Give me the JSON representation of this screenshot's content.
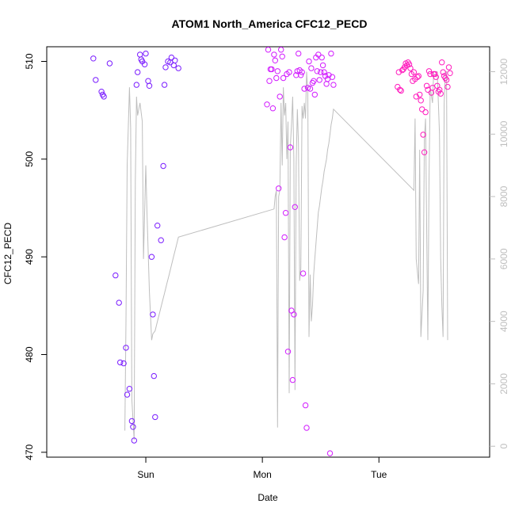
{
  "chart_data": {
    "type": "scatter",
    "title": "ATOM1 North_America CFC12_PECD",
    "xlabel": "Date",
    "ylabel": "CFC12_PECD",
    "x_ticks": [
      "Sun",
      "Mon",
      "Tue"
    ],
    "y_ticks": [
      470,
      480,
      490,
      500,
      510
    ],
    "y_ticks_right": [
      0,
      2000,
      4000,
      6000,
      8000,
      10000,
      12000
    ],
    "ylim": [
      469.5,
      511.5
    ],
    "ylim_right": [
      0,
      12000
    ],
    "colors": {
      "day1": "#7a1cff",
      "day2": "#d21cff",
      "day3": "#ff1cbe",
      "line": "#bebebe",
      "axis": "#000000"
    },
    "series": [
      {
        "values_comment_none": "",
        "x": [
          0.05,
          0.07,
          0.12,
          0.13,
          0.14,
          0.19,
          0.24,
          0.27,
          0.28,
          0.31,
          0.33,
          0.34,
          0.36,
          0.38,
          0.39,
          0.4,
          0.42,
          0.43,
          0.45,
          0.46,
          0.47,
          0.49,
          0.5,
          0.52,
          0.53,
          0.55,
          0.56,
          0.57,
          0.58,
          0.6,
          0.63,
          0.65,
          0.66,
          0.67,
          0.69,
          0.71,
          0.72,
          0.74,
          0.75,
          0.78
        ],
        "y": [
          510.3,
          508.1,
          506.9,
          506.6,
          506.4,
          509.8,
          488.1,
          485.3,
          479.2,
          479.1,
          480.7,
          475.9,
          476.5,
          473.2,
          472.6,
          471.2,
          507.6,
          508.9,
          510.7,
          510.2,
          510.0,
          509.7,
          510.8,
          508.0,
          507.5,
          490.0,
          484.1,
          477.8,
          473.6,
          493.2,
          491.7,
          499.3,
          507.6,
          509.4,
          510.0,
          509.9,
          510.4,
          509.6,
          510.1,
          509.3
        ]
      },
      {
        "x": [
          1.54,
          1.55,
          1.56,
          1.57,
          1.58,
          1.59,
          1.6,
          1.61,
          1.62,
          1.63,
          1.64,
          1.65,
          1.66,
          1.67,
          1.68,
          1.69,
          1.7,
          1.71,
          1.72,
          1.73,
          1.74,
          1.75,
          1.76,
          1.77,
          1.78,
          1.79,
          1.8,
          1.81,
          1.82,
          1.83,
          1.84,
          1.85,
          1.86,
          1.87,
          1.88,
          1.89,
          1.9,
          1.91,
          1.92,
          1.93,
          1.94,
          1.95,
          1.96,
          1.97,
          1.98,
          1.99,
          2.0,
          2.01,
          2.02,
          2.03,
          2.04,
          2.05,
          2.06,
          2.07,
          2.08,
          2.09,
          2.1,
          2.11
        ],
        "y": [
          505.6,
          511.2,
          508.0,
          509.2,
          509.2,
          505.2,
          510.7,
          510.1,
          508.3,
          509.0,
          497.0,
          506.4,
          511.2,
          510.5,
          508.3,
          492.0,
          494.5,
          508.7,
          480.3,
          508.9,
          501.2,
          484.5,
          477.4,
          484.1,
          495.1,
          508.6,
          509.0,
          510.8,
          509.1,
          508.6,
          508.9,
          488.3,
          507.2,
          474.8,
          472.5,
          507.3,
          510.0,
          507.2,
          509.3,
          507.8,
          508.0,
          506.6,
          510.4,
          509.0,
          510.7,
          508.1,
          508.9,
          510.4,
          509.6,
          508.9,
          508.5,
          507.7,
          508.2,
          508.6,
          469.9,
          510.8,
          508.4,
          507.6
        ]
      },
      {
        "x": [
          2.66,
          2.67,
          2.68,
          2.69,
          2.7,
          2.71,
          2.72,
          2.73,
          2.74,
          2.75,
          2.76,
          2.77,
          2.78,
          2.79,
          2.8,
          2.81,
          2.82,
          2.83,
          2.84,
          2.85,
          2.86,
          2.87,
          2.88,
          2.89,
          2.9,
          2.91,
          2.92,
          2.93,
          2.94,
          2.95,
          2.96,
          2.97,
          2.98,
          2.99,
          3.0,
          3.01,
          3.02,
          3.03,
          3.04,
          3.05,
          3.06,
          3.07,
          3.08,
          3.09,
          3.1,
          3.11
        ],
        "y": [
          507.4,
          508.9,
          507.1,
          507.0,
          509.1,
          509.2,
          509.4,
          509.8,
          509.6,
          509.9,
          509.7,
          509.3,
          508.7,
          508.0,
          508.9,
          508.2,
          506.4,
          508.4,
          508.5,
          506.6,
          506.0,
          505.1,
          502.5,
          500.7,
          504.8,
          507.5,
          507.1,
          509.0,
          508.7,
          506.8,
          507.3,
          508.7,
          508.7,
          508.4,
          507.5,
          506.9,
          507.1,
          506.7,
          509.9,
          508.9,
          508.5,
          508.3,
          508.1,
          507.4,
          509.4,
          508.8
        ]
      }
    ],
    "line_series": {
      "x": [
        0.32,
        0.33,
        0.34,
        0.36,
        0.37,
        0.38,
        0.4,
        0.41,
        0.42,
        0.43,
        0.45,
        0.47,
        0.48,
        0.5,
        0.51,
        0.53,
        0.55,
        0.56,
        0.58,
        0.6,
        0.62,
        0.64,
        0.66,
        0.68,
        0.7,
        0.72,
        0.74,
        0.76,
        0.78,
        1.6,
        1.61,
        1.62,
        1.63,
        1.64,
        1.65,
        1.66,
        1.67,
        1.68,
        1.69,
        1.7,
        1.71,
        1.72,
        1.73,
        1.74,
        1.75,
        1.76,
        1.77,
        1.78,
        1.79,
        1.8,
        1.81,
        1.82,
        1.83,
        1.84,
        1.85,
        1.86,
        1.87,
        1.88,
        1.89,
        1.9,
        1.91,
        1.92,
        1.93,
        1.94,
        1.95,
        1.96,
        1.97,
        1.98,
        1.99,
        2.0,
        2.01,
        2.02,
        2.03,
        2.04,
        2.05,
        2.06,
        2.07,
        2.08,
        2.09,
        2.1,
        2.11,
        2.8,
        2.81,
        2.82,
        2.84,
        2.85,
        2.86,
        2.88,
        2.89,
        2.9,
        2.92,
        2.93,
        2.94,
        2.96,
        2.97,
        2.98,
        3.0,
        3.01,
        3.02,
        3.03,
        3.04,
        3.05,
        3.06,
        3.07,
        3.08,
        3.09
      ],
      "y": [
        500,
        4000,
        9000,
        11500,
        10200,
        1500,
        200,
        8500,
        11200,
        10600,
        11000,
        10400,
        6000,
        9000,
        7500,
        5000,
        3400,
        3600,
        3700,
        4000,
        4300,
        4600,
        4900,
        5200,
        5500,
        5800,
        6100,
        6400,
        6700,
        7600,
        8000,
        8200,
        600,
        8000,
        8200,
        11000,
        9000,
        11500,
        10600,
        11000,
        9200,
        10400,
        1700,
        9600,
        10300,
        11200,
        9200,
        1800,
        9000,
        10800,
        9700,
        5300,
        5700,
        10900,
        10500,
        11000,
        10500,
        12000,
        11300,
        3500,
        5500,
        4000,
        4500,
        5500,
        6000,
        6500,
        7000,
        7500,
        7700,
        8000,
        8300,
        8500,
        8800,
        9000,
        9200,
        9500,
        9700,
        10000,
        10300,
        10500,
        10800,
        8200,
        10500,
        6000,
        5200,
        9500,
        3500,
        5000,
        9800,
        10500,
        3400,
        8600,
        11500,
        11000,
        12000,
        12000,
        12000,
        11000,
        10000,
        6000,
        4500,
        3500,
        11000,
        12000,
        12000,
        3400
      ]
    }
  }
}
